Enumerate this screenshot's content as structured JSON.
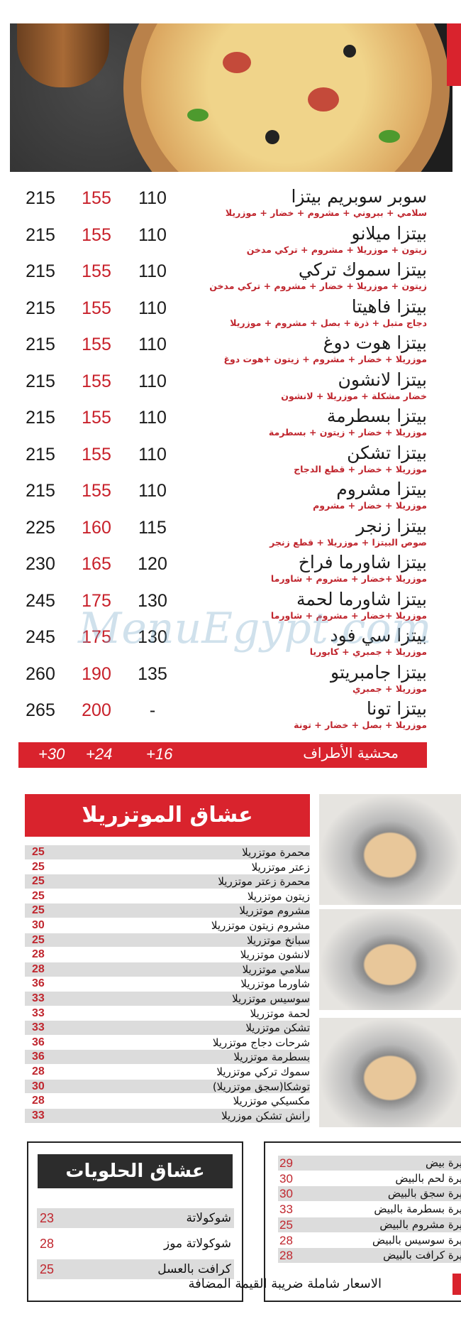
{
  "pizza_menu": {
    "items": [
      {
        "name": "سوبر سوبريم بيتزا",
        "desc": "سلامي + ببروني + مشروم + خضار + موزريلا",
        "small": "110",
        "medium": "155",
        "large": "215"
      },
      {
        "name": "بيتزا ميلانو",
        "desc": "زيتون + موزريلا + مشروم + تركي مدخن",
        "small": "110",
        "medium": "155",
        "large": "215"
      },
      {
        "name": "بيتزا سموك تركي",
        "desc": "زيتون + موزريلا + خضار + مشروم + تركي مدخن",
        "small": "110",
        "medium": "155",
        "large": "215"
      },
      {
        "name": "بيتزا فاهيتا",
        "desc": "دجاج متبل + ذرة + بصل + مشروم + موزريلا",
        "small": "110",
        "medium": "155",
        "large": "215"
      },
      {
        "name": "بيتزا هوت دوغ",
        "desc": "موزريلا + خضار + مشروم + زيتون +هوت دوغ",
        "small": "110",
        "medium": "155",
        "large": "215"
      },
      {
        "name": "بيتزا لانشون",
        "desc": "خضار مشكلة + موزريلا + لانشون",
        "small": "110",
        "medium": "155",
        "large": "215"
      },
      {
        "name": "بيتزا بسطرمة",
        "desc": "موزريلا + خضار + زيتون + بسطرمة",
        "small": "110",
        "medium": "155",
        "large": "215"
      },
      {
        "name": "بيتزا تشكن",
        "desc": "موزريلا + خضار + قطع الدجاج",
        "small": "110",
        "medium": "155",
        "large": "215"
      },
      {
        "name": "بيتزا مشروم",
        "desc": "موزريلا + خضار + مشروم",
        "small": "110",
        "medium": "155",
        "large": "215"
      },
      {
        "name": "بيتزا زنجر",
        "desc": "صوص البيتزا + موزريلا + قطع زنجر",
        "small": "115",
        "medium": "160",
        "large": "225"
      },
      {
        "name": "بيتزا شاورما فراخ",
        "desc": "موزريلا +خضار + مشروم + شاورما",
        "small": "120",
        "medium": "165",
        "large": "230"
      },
      {
        "name": "بيتزا شاورما لحمة",
        "desc": "موزريلا +خضار + مشروم + شاورما",
        "small": "130",
        "medium": "175",
        "large": "245"
      },
      {
        "name": "بيتزا سي فود",
        "desc": "موزريلا + جمبري + كابوريا",
        "small": "130",
        "medium": "175",
        "large": "245"
      },
      {
        "name": "بيتزا جامبريتو",
        "desc": "موزريلا + جمبري",
        "small": "135",
        "medium": "190",
        "large": "260"
      },
      {
        "name": "بيتزا تونا",
        "desc": "موزريلا + بصل + خضار + تونة",
        "small": "-",
        "medium": "200",
        "large": "265"
      }
    ]
  },
  "stuffed_crust": {
    "label": "محشية الأطراف",
    "small": "+16",
    "medium": "+24",
    "large": "+30"
  },
  "mozzarella": {
    "title": "عشاق الموتزريلا",
    "items": [
      {
        "name": "محمرة موتزريلا",
        "price": "25"
      },
      {
        "name": "زعتر موتزريلا",
        "price": "25"
      },
      {
        "name": "محمرة زعتر موتزريلا",
        "price": "25"
      },
      {
        "name": "زيتون موتزريلا",
        "price": "25"
      },
      {
        "name": "مشروم موتزريلا",
        "price": "25"
      },
      {
        "name": "مشروم زيتون موتزريلا",
        "price": "30"
      },
      {
        "name": "سبانخ موتزريلا",
        "price": "25"
      },
      {
        "name": "لانشون موتزريلا",
        "price": "28"
      },
      {
        "name": "سلامي موتزريلا",
        "price": "28"
      },
      {
        "name": "شاورما موتزريلا",
        "price": "36"
      },
      {
        "name": "سوسيس موتزريلا",
        "price": "33"
      },
      {
        "name": "لحمة موتزريلا",
        "price": "33"
      },
      {
        "name": "تشكن موتزريلا",
        "price": "33"
      },
      {
        "name": "شرحات دجاج موتزريلا",
        "price": "36"
      },
      {
        "name": "بسطرمة موتزريلا",
        "price": "36"
      },
      {
        "name": "سموك تركي موتزريلا",
        "price": "28"
      },
      {
        "name": "توشكا(سجق موتزريلا)",
        "price": "30"
      },
      {
        "name": "مكسيكي موتزريلا",
        "price": "28"
      },
      {
        "name": "رانش تشكن موزريلا",
        "price": "33"
      }
    ]
  },
  "sweets": {
    "title": "عشاق الحلويات",
    "items": [
      {
        "name": "شوكولاتة",
        "price": "23"
      },
      {
        "name": "شوكولاتة موز",
        "price": "28"
      },
      {
        "name": "كرافت بالعسل",
        "price": "25"
      }
    ]
  },
  "fatira": {
    "items": [
      {
        "name": "فطيرة بيض",
        "price": "29"
      },
      {
        "name": "فطيرة لحم بالبيض",
        "price": "30"
      },
      {
        "name": "فطيرة سجق بالبيض",
        "price": "30"
      },
      {
        "name": "فطيرة بسطرمة بالبيض",
        "price": "33"
      },
      {
        "name": "فطيرة مشروم بالبيض",
        "price": "25"
      },
      {
        "name": "فطيرة سوسيس بالبيض",
        "price": "28"
      },
      {
        "name": "فطيرة كرافت بالبيض",
        "price": "28"
      }
    ]
  },
  "footer": {
    "note": "الاسعار شاملة ضريبة القيمة المضافة"
  },
  "watermark": "MenuEgypt.com",
  "colors": {
    "accent": "#d9232d",
    "dark": "#2c2c2c",
    "price_red": "#c0262e"
  }
}
